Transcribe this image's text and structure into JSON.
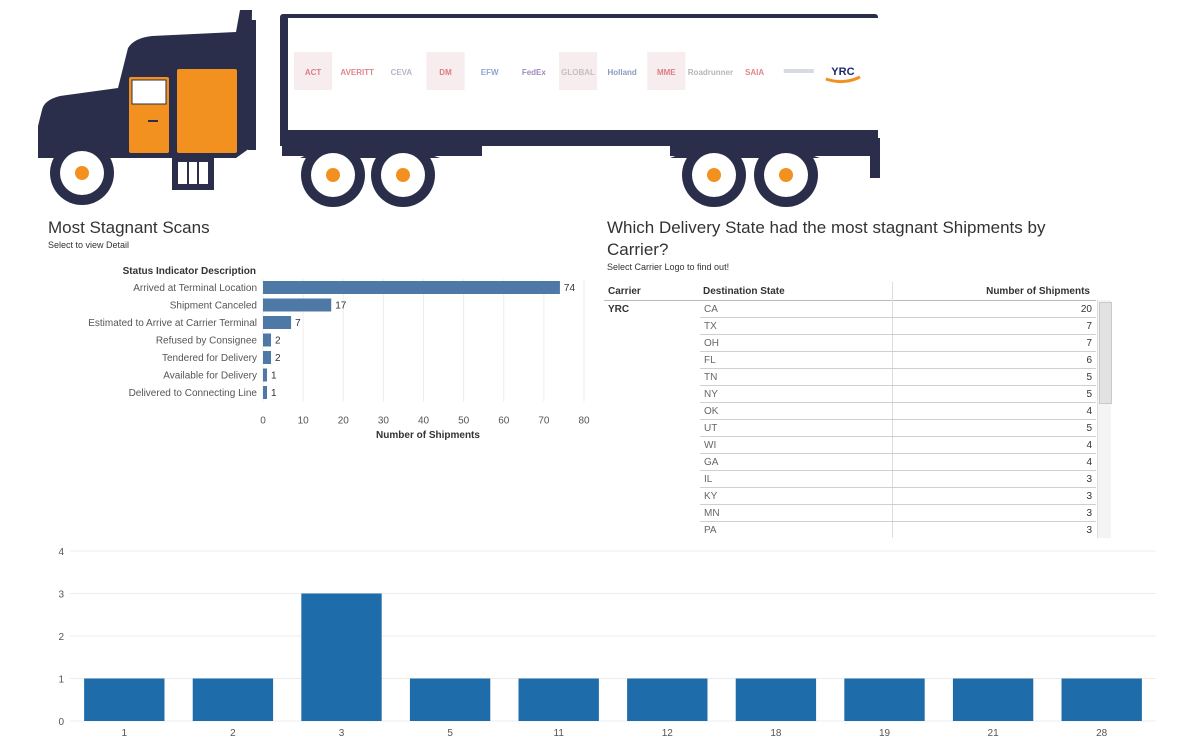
{
  "header": {
    "truck_logos": [
      "ACT",
      "AVERITT",
      "CEVA",
      "DM",
      "EFW",
      "FedEx",
      "GLOBAL",
      "Holland",
      "MME",
      "Roadrunner",
      "SAIA",
      "",
      "YRC"
    ]
  },
  "stagnant": {
    "title": "Most Stagnant Scans",
    "subtitle": "Select to view Detail"
  },
  "state_panel": {
    "title_line1": "Which Delivery State  had the most stagnant Shipments by",
    "title_line2": "Carrier?",
    "subtitle": "Select Carrier  Logo to find out!",
    "columns": [
      "Carrier",
      "Destination State",
      "Number of Shipments"
    ],
    "carrier": "YRC",
    "rows": [
      {
        "state": "CA",
        "count": "20"
      },
      {
        "state": "TX",
        "count": "7"
      },
      {
        "state": "OH",
        "count": "7"
      },
      {
        "state": "FL",
        "count": "6"
      },
      {
        "state": "TN",
        "count": "5"
      },
      {
        "state": "NY",
        "count": "5"
      },
      {
        "state": "OK",
        "count": "4"
      },
      {
        "state": "UT",
        "count": "5"
      },
      {
        "state": "WI",
        "count": "4"
      },
      {
        "state": "GA",
        "count": "4"
      },
      {
        "state": "IL",
        "count": "3"
      },
      {
        "state": "KY",
        "count": "3"
      },
      {
        "state": "MN",
        "count": "3"
      },
      {
        "state": "PA",
        "count": "3"
      }
    ]
  },
  "colors": {
    "hbar": "#4e79a7",
    "vbar": "#1f6cab",
    "truck_body": "#2b2e4a",
    "cab_orange": "#f2911f"
  },
  "chart_data": [
    {
      "type": "bar",
      "orientation": "horizontal",
      "title": "",
      "row_header": "Status Indicator Description",
      "categories": [
        "Arrived at Terminal Location",
        "Shipment Canceled",
        "Estimated to Arrive at Carrier Terminal",
        "Refused by Consignee",
        "Tendered for Delivery",
        "Available for Delivery",
        "Delivered to Connecting Line"
      ],
      "values": [
        74,
        17,
        7,
        2,
        2,
        1,
        1
      ],
      "xlabel": "Number of Shipments",
      "xlim": [
        0,
        80
      ],
      "xticks": [
        0,
        10,
        20,
        30,
        40,
        50,
        60,
        70,
        80
      ],
      "grid": true
    },
    {
      "type": "bar",
      "orientation": "vertical",
      "title": "",
      "categories": [
        "1",
        "2",
        "3",
        "5",
        "11",
        "12",
        "18",
        "19",
        "21",
        "28"
      ],
      "values": [
        1,
        1,
        3,
        1,
        1,
        1,
        1,
        1,
        1,
        1
      ],
      "ylim": [
        0,
        4
      ],
      "yticks": [
        0,
        1,
        2,
        3,
        4
      ],
      "grid": true
    }
  ]
}
